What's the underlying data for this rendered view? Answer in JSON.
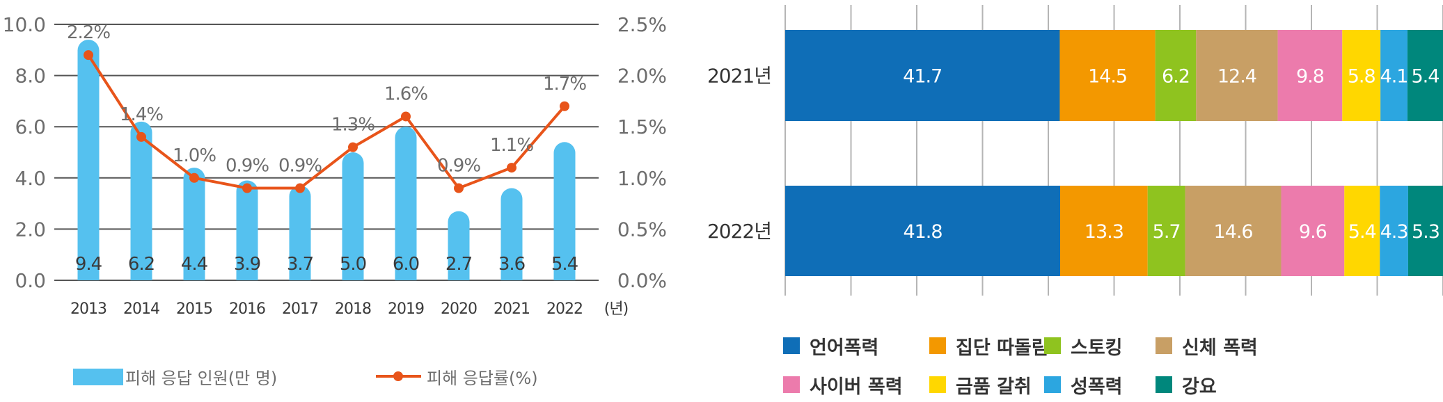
{
  "chart_data": [
    {
      "type": "bar+line",
      "title": "",
      "categories": [
        "2013",
        "2014",
        "2015",
        "2016",
        "2017",
        "2018",
        "2019",
        "2020",
        "2021",
        "2022"
      ],
      "x_unit_label": "(년)",
      "series": [
        {
          "name": "피해 응답 인원(만 명)",
          "type": "bar",
          "axis": "left",
          "color": "#55c1ef",
          "values": [
            9.4,
            6.2,
            4.4,
            3.9,
            3.7,
            5.0,
            6.0,
            2.7,
            3.6,
            5.4
          ],
          "labels": [
            "9.4",
            "6.2",
            "4.4",
            "3.9",
            "3.7",
            "5.0",
            "6.0",
            "2.7",
            "3.6",
            "5.4"
          ]
        },
        {
          "name": "피해 응답률(%)",
          "type": "line",
          "axis": "right",
          "color": "#e8541a",
          "values": [
            2.2,
            1.4,
            1.0,
            0.9,
            0.9,
            1.3,
            1.6,
            0.9,
            1.1,
            1.7
          ],
          "labels": [
            "2.2%",
            "1.4%",
            "1.0%",
            "0.9%",
            "0.9%",
            "1.3%",
            "1.6%",
            "0.9%",
            "1.1%",
            "1.7%"
          ]
        }
      ],
      "left_axis": {
        "ticks": [
          "0.0",
          "2.0",
          "4.0",
          "6.0",
          "8.0",
          "10.0"
        ],
        "ylim": [
          0,
          10
        ]
      },
      "right_axis": {
        "ticks": [
          "0.0%",
          "0.5%",
          "1.0%",
          "1.5%",
          "2.0%",
          "2.5%"
        ],
        "ylim": [
          0,
          2.5
        ]
      },
      "grid": true,
      "legend_position": "bottom"
    },
    {
      "type": "stacked-bar-horizontal",
      "title": "",
      "categories": [
        "2021년",
        "2022년"
      ],
      "series": [
        {
          "name": "언어폭력",
          "color": "#0f6eb7",
          "values": [
            41.7,
            41.8
          ]
        },
        {
          "name": "집단 따돌림",
          "color": "#f39800",
          "values": [
            14.5,
            13.3
          ]
        },
        {
          "name": "스토킹",
          "color": "#8fc31f",
          "values": [
            6.2,
            5.7
          ]
        },
        {
          "name": "신체 폭력",
          "color": "#c89f65",
          "values": [
            12.4,
            14.6
          ]
        },
        {
          "name": "사이버 폭력",
          "color": "#ec7bac",
          "values": [
            9.8,
            9.6
          ]
        },
        {
          "name": "금품 갈취",
          "color": "#ffd700",
          "values": [
            5.8,
            5.4
          ]
        },
        {
          "name": "성폭력",
          "color": "#2ca6e0",
          "values": [
            4.1,
            4.3
          ]
        },
        {
          "name": "강요",
          "color": "#00877c",
          "values": [
            5.4,
            5.3
          ]
        }
      ],
      "xlim": [
        0,
        100
      ],
      "grid": true,
      "legend_position": "bottom"
    }
  ],
  "left_chart": {
    "left_ticks": [
      "10.0",
      "8.0",
      "6.0",
      "4.0",
      "2.0",
      "0.0"
    ],
    "right_ticks": [
      "2.5%",
      "2.0%",
      "1.5%",
      "1.0%",
      "0.5%",
      "0.0%"
    ],
    "years": [
      "2013",
      "2014",
      "2015",
      "2016",
      "2017",
      "2018",
      "2019",
      "2020",
      "2021",
      "2022"
    ],
    "x_unit_label": "(년)",
    "bar_labels": [
      "9.4",
      "6.2",
      "4.4",
      "3.9",
      "3.7",
      "5.0",
      "6.0",
      "2.7",
      "3.6",
      "5.4"
    ],
    "rate_labels": [
      "2.2%",
      "1.4%",
      "1.0%",
      "0.9%",
      "0.9%",
      "1.3%",
      "1.6%",
      "0.9%",
      "1.1%",
      "1.7%"
    ],
    "legend": {
      "bar_label": "피해 응답 인원(만 명)",
      "line_label": "피해 응답률(%)"
    },
    "colors": {
      "bar": "#55c1ef",
      "line": "#e8541a",
      "grid": "#555555"
    }
  },
  "right_chart": {
    "rows": [
      {
        "label": "2021년",
        "segments": [
          "41.7",
          "14.5",
          "6.2",
          "12.4",
          "9.8",
          "5.8",
          "4.1",
          "5.4"
        ]
      },
      {
        "label": "2022년",
        "segments": [
          "41.8",
          "13.3",
          "5.7",
          "14.6",
          "9.6",
          "5.4",
          "4.3",
          "5.3"
        ]
      }
    ],
    "legend": [
      {
        "label": "언어폭력",
        "color": "#0f6eb7"
      },
      {
        "label": "집단 따돌림",
        "color": "#f39800"
      },
      {
        "label": "스토킹",
        "color": "#8fc31f"
      },
      {
        "label": "신체 폭력",
        "color": "#c89f65"
      },
      {
        "label": "사이버 폭력",
        "color": "#ec7bac"
      },
      {
        "label": "금품 갈취",
        "color": "#ffd700"
      },
      {
        "label": "성폭력",
        "color": "#2ca6e0"
      },
      {
        "label": "강요",
        "color": "#00877c"
      }
    ]
  }
}
